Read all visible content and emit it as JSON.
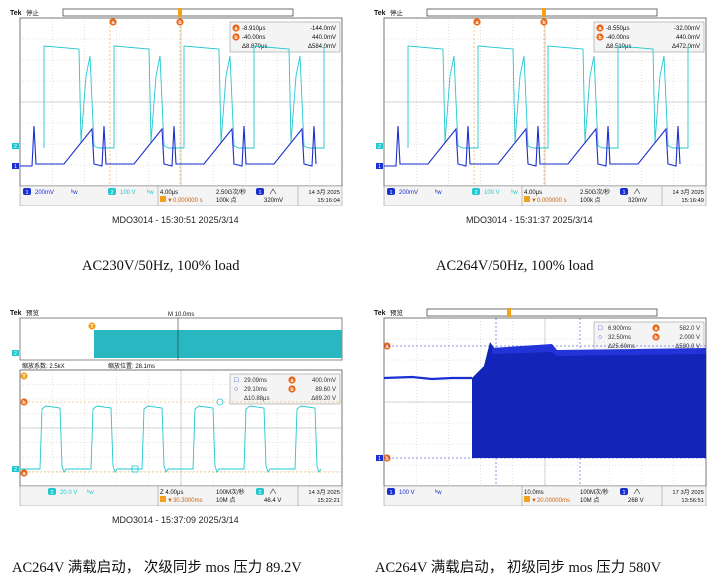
{
  "scopes": [
    {
      "brand": "Tek",
      "status": "停止",
      "cursors": {
        "a": "a",
        "b": "b"
      },
      "readout": [
        [
          "a",
          "-8.910μs",
          "-144.0mV"
        ],
        [
          "b",
          "-40.00ns",
          "440.0mV"
        ],
        [
          "",
          "Δ8.870μs",
          "Δ584.0mV"
        ]
      ],
      "bottom": {
        "ch1_num": "1",
        "ch1_scale": "200mV",
        "bw": "ᵇw",
        "ch2_num": "2",
        "ch2_scale": "100 V",
        "bw2": "ᵇw",
        "timebase": "4.00μs",
        "trig_pos": "▼0.000000 s",
        "sample_rate": "2.50G次/秒",
        "rec_len": "100k 点",
        "trig_ch": "1",
        "trig_level": "320mV",
        "date": "14 3月 2025",
        "time": "15:16:04"
      },
      "caption_mdo": "MDO3014 - 15:30:51  2025/3/14"
    },
    {
      "brand": "Tek",
      "status": "停止",
      "cursors": {
        "a": "a",
        "b": "b"
      },
      "readout": [
        [
          "a",
          "-8.550μs",
          "-32.00mV"
        ],
        [
          "b",
          "-40.00ns",
          "440.0mV"
        ],
        [
          "",
          "Δ8.510μs",
          "Δ472.0mV"
        ]
      ],
      "bottom": {
        "ch1_num": "1",
        "ch1_scale": "200mV",
        "bw": "ᵇw",
        "ch2_num": "2",
        "ch2_scale": "100 V",
        "bw2": "ᵇw",
        "timebase": "4.00μs",
        "trig_pos": "▼0.000000 s",
        "sample_rate": "2.50G次/秒",
        "rec_len": "100k 点",
        "trig_ch": "1",
        "trig_level": "320mV",
        "date": "14 3月 2025",
        "time": "15:16:49"
      },
      "caption_mdo": "MDO3014 - 15:31:37  2025/3/14"
    },
    {
      "brand": "Tek",
      "status": "预览",
      "marker_top": "M 10.0ms",
      "zoom_factor": "缩放系数: 2.5kX",
      "zoom_pos": "缩放位置: 28.1ms",
      "readout": [
        [
          "□",
          "29.09ms",
          "a",
          "400.0mV"
        ],
        [
          "○",
          "29.10ms",
          "b",
          "89.60 V"
        ],
        [
          "",
          "Δ10.88μs",
          "",
          "Δ89.20 V"
        ]
      ],
      "bottom": {
        "ch2_num": "2",
        "ch2_scale": "20.0 V",
        "bw2": "ᵇw",
        "timebase": "Z 4.00μs",
        "trig_pos": "▼30.3000ms",
        "sample_rate": "100M次/秒",
        "rec_len": "10M 点",
        "trig_ch": "2",
        "trig_level": "46.4 V",
        "date": "14 3月 2025",
        "time": "15:22:21"
      },
      "caption_mdo": "MDO3014 - 15:37:09  2025/3/14"
    },
    {
      "brand": "Tek",
      "status": "预览",
      "readout": [
        [
          "□",
          "6.900ms",
          "a",
          "582.0 V"
        ],
        [
          "○",
          "32.50ms",
          "b",
          "2.000 V"
        ],
        [
          "",
          "Δ25.60ms",
          "",
          "Δ580.0 V"
        ]
      ],
      "bottom": {
        "ch1_num": "1",
        "ch1_scale": "100 V",
        "bw": "ᵇw",
        "timebase": "10.0ms",
        "trig_pos": "▼20.00000ms",
        "sample_rate": "100M次/秒",
        "rec_len": "10M 点",
        "trig_ch": "1",
        "trig_level": "268 V",
        "date": "17 3月 2025",
        "time": "13:56:51"
      }
    }
  ],
  "captions": [
    "AC230V/50Hz,  100% load",
    "AC264V/50Hz,  100% load",
    "AC264V 满载启动，  次级同步 mos 压力 89.2V",
    "AC264V 满载启动，  初级同步 mos 压力 580V"
  ],
  "colors": {
    "ch1": "#1a2fd0",
    "ch2": "#22c8d0",
    "cursor": "#e8681a",
    "grid": "#b8b8b8",
    "frame": "#555555",
    "readout_bg": "#f4f4f4"
  }
}
